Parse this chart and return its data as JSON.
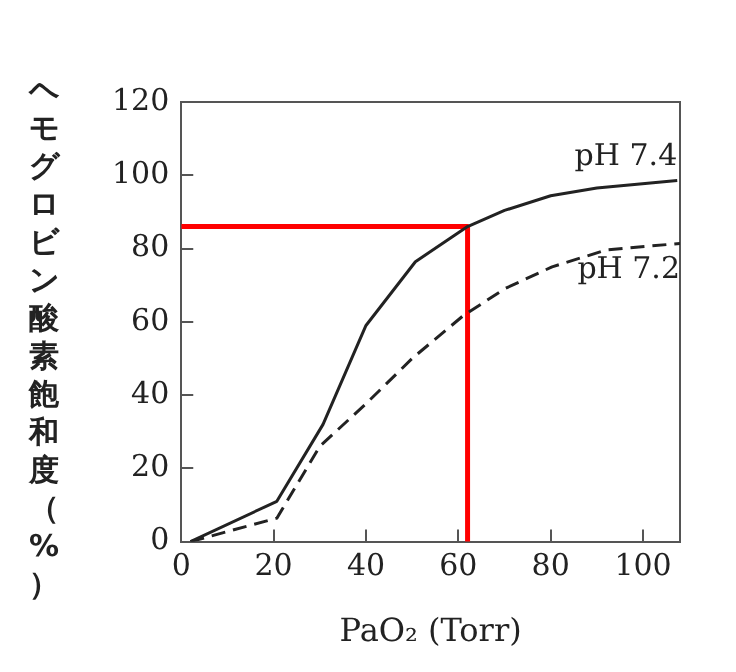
{
  "chart_data": {
    "type": "line",
    "xlabel": "PaO₂ (Torr)",
    "ylabel": "ヘモグロビン酸素飽和度（%）",
    "xlim": [
      0,
      108
    ],
    "ylim": [
      0,
      120
    ],
    "xticks": [
      0,
      20,
      40,
      60,
      80,
      100
    ],
    "yticks": [
      0,
      20,
      40,
      60,
      80,
      100,
      120
    ],
    "grid": false,
    "legend": false,
    "marker": "none",
    "series": [
      {
        "name": "pH 7.4",
        "color": "#222222",
        "line_style": "solid",
        "x": [
          2,
          20.7,
          30.7,
          40,
          50.7,
          62,
          70,
          80,
          90,
          107.4
        ],
        "values": [
          0,
          11,
          32,
          59,
          76.4,
          86,
          90.4,
          94.4,
          96.5,
          98.6
        ]
      },
      {
        "name": "pH 7.2",
        "color": "#222222",
        "line_style": "dashed",
        "x": [
          2,
          20.7,
          30,
          40.3,
          50,
          61,
          70,
          80.3,
          92,
          108
        ],
        "values": [
          0,
          6.4,
          26,
          38,
          50,
          61.6,
          69,
          75,
          79.6,
          81.4
        ]
      },
      {
        "color": "#ff0000",
        "line_style": "solid",
        "x": [
          0,
          62,
          62
        ],
        "values": [
          86,
          86,
          0
        ]
      }
    ]
  }
}
